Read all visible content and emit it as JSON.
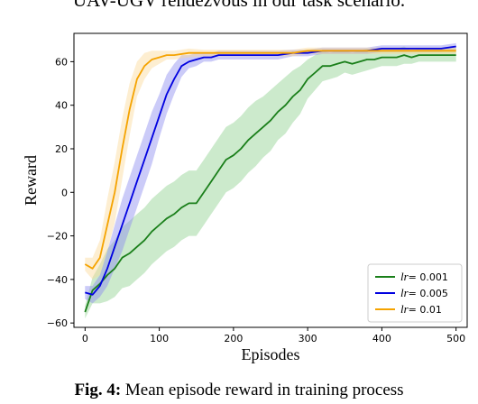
{
  "page": {
    "top_text": "UAV-UGV rendezvous in our task scenario.",
    "caption_label": "Fig. 4:",
    "caption_text": " Mean episode reward in training process"
  },
  "chart_data": {
    "type": "line",
    "xlabel": "Episodes",
    "ylabel": "Reward",
    "xlim": [
      -15,
      515
    ],
    "ylim": [
      -62,
      73
    ],
    "xticks": [
      0,
      100,
      200,
      300,
      400,
      500
    ],
    "yticks": [
      -60,
      -40,
      -20,
      0,
      20,
      40,
      60
    ],
    "grid": false,
    "legend_position": "lower-right",
    "series": [
      {
        "name": "lr= 0.001",
        "legend_prefix": "lr",
        "legend_suffix": "= 0.001",
        "color": "#1a7f1a",
        "band_color": "#8fd08f",
        "x": [
          0,
          10,
          20,
          30,
          40,
          50,
          60,
          70,
          80,
          90,
          100,
          110,
          120,
          130,
          140,
          150,
          160,
          170,
          180,
          190,
          200,
          210,
          220,
          230,
          240,
          250,
          260,
          270,
          280,
          290,
          300,
          310,
          320,
          330,
          340,
          350,
          360,
          370,
          380,
          390,
          400,
          410,
          420,
          430,
          440,
          450,
          460,
          470,
          480,
          490,
          500
        ],
        "y": [
          -55,
          -45,
          -42,
          -38,
          -35,
          -30,
          -28,
          -25,
          -22,
          -18,
          -15,
          -12,
          -10,
          -7,
          -5,
          -5,
          0,
          5,
          10,
          15,
          17,
          20,
          24,
          27,
          30,
          33,
          37,
          40,
          44,
          47,
          52,
          55,
          58,
          58,
          59,
          60,
          59,
          60,
          61,
          61,
          62,
          62,
          62,
          63,
          62,
          63,
          63,
          63,
          63,
          63,
          63
        ],
        "spread": [
          3,
          6,
          9,
          12,
          13,
          14,
          15,
          15,
          15,
          15,
          15,
          15,
          15,
          15,
          15,
          15,
          15,
          15,
          15,
          15,
          15,
          15,
          15,
          15,
          14,
          14,
          13,
          13,
          12,
          11,
          9,
          8,
          7,
          6,
          6,
          5,
          5,
          5,
          5,
          4,
          4,
          4,
          4,
          4,
          3,
          3,
          3,
          3,
          3,
          3,
          3
        ]
      },
      {
        "name": "lr= 0.005",
        "legend_prefix": "lr",
        "legend_suffix": "= 0.005",
        "color": "#0000e0",
        "band_color": "#8c8cf0",
        "x": [
          0,
          10,
          20,
          30,
          40,
          50,
          60,
          70,
          80,
          90,
          100,
          110,
          120,
          130,
          140,
          150,
          160,
          170,
          180,
          190,
          200,
          220,
          240,
          260,
          280,
          300,
          320,
          340,
          360,
          380,
          400,
          420,
          440,
          460,
          480,
          500
        ],
        "y": [
          -46,
          -47,
          -43,
          -35,
          -25,
          -15,
          -5,
          5,
          15,
          25,
          35,
          45,
          52,
          58,
          60,
          61,
          62,
          62,
          63,
          63,
          63,
          63,
          63,
          63,
          64,
          64,
          65,
          65,
          65,
          65,
          66,
          66,
          66,
          66,
          66,
          67
        ],
        "spread": [
          3,
          4,
          5,
          8,
          10,
          12,
          12,
          12,
          12,
          12,
          10,
          9,
          7,
          5,
          3,
          3,
          2,
          2,
          2,
          2,
          2,
          2,
          2,
          2,
          1.5,
          1.5,
          1.5,
          1.5,
          1.5,
          1.5,
          1.5,
          1.5,
          1.5,
          1.5,
          1.5,
          1.5
        ]
      },
      {
        "name": "lr= 0.01",
        "legend_prefix": "lr",
        "legend_suffix": "= 0.01",
        "color": "#f5a300",
        "band_color": "#fbd99a",
        "x": [
          0,
          10,
          20,
          30,
          40,
          50,
          60,
          70,
          80,
          90,
          100,
          110,
          120,
          140,
          160,
          180,
          200,
          220,
          240,
          260,
          280,
          300,
          320,
          340,
          360,
          380,
          400,
          420,
          440,
          460,
          480,
          500
        ],
        "y": [
          -33,
          -35,
          -30,
          -15,
          0,
          20,
          38,
          52,
          58,
          61,
          62,
          63,
          63,
          64,
          64,
          64,
          64,
          64,
          64,
          64,
          64,
          65,
          65,
          65,
          65,
          65,
          65,
          65,
          65,
          65,
          65,
          65
        ],
        "spread": [
          3,
          5,
          8,
          12,
          14,
          14,
          12,
          8,
          6,
          4,
          3,
          2,
          2,
          2,
          1.5,
          1.5,
          1.5,
          1.5,
          1.5,
          1.5,
          1.5,
          1.5,
          1.5,
          1.5,
          1.5,
          1.5,
          1.5,
          1.5,
          1.5,
          1.5,
          1.5,
          1.5
        ]
      }
    ]
  }
}
